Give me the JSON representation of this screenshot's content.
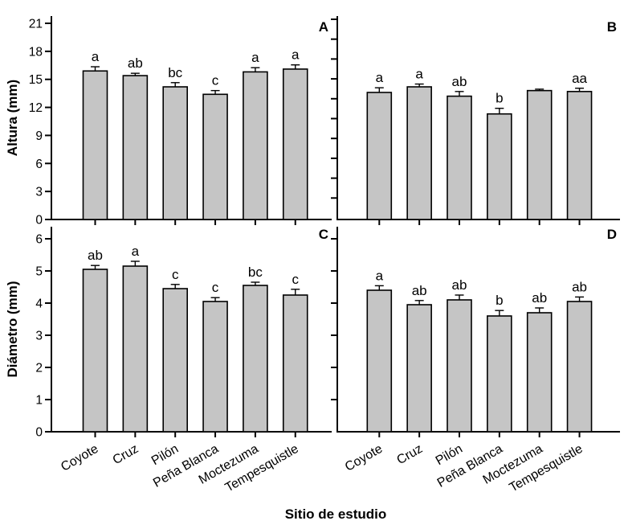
{
  "figure": {
    "background": "#ffffff",
    "xlabel": "Sitio de estudio"
  },
  "chart_data": {
    "type": "bar",
    "grid": false,
    "legend": null,
    "xlabel": "Sitio de estudio",
    "categories": [
      "Coyote",
      "Cruz",
      "Pilón",
      "Peña Blanca",
      "Moctezuma",
      "Tempesquistle"
    ],
    "colors": {
      "bar_fill": "#c5c5c5",
      "bar_stroke": "#000000",
      "axis": "#000000",
      "error_bar": "#000000",
      "text": "#000000"
    },
    "panels": [
      {
        "id": "A",
        "row": "top",
        "col": "left",
        "ylabel": "Altura (mm)",
        "ylim": [
          0,
          21
        ],
        "yticks": [
          0,
          3,
          6,
          9,
          12,
          15,
          18,
          21
        ],
        "yticks_labeled": true,
        "values": [
          15.9,
          15.4,
          14.2,
          13.4,
          15.8,
          16.1
        ],
        "errors": [
          0.45,
          0.25,
          0.45,
          0.4,
          0.45,
          0.45
        ],
        "sig_letters": [
          "a",
          "ab",
          "bc",
          "c",
          "a",
          "a"
        ]
      },
      {
        "id": "B",
        "row": "top",
        "col": "right",
        "ylabel": "",
        "ylim": [
          0,
          21
        ],
        "yticks": [],
        "yticks_labeled": false,
        "values": [
          13.6,
          14.2,
          13.2,
          11.3,
          13.8,
          13.7
        ],
        "errors": [
          0.5,
          0.3,
          0.5,
          0.6,
          0.15,
          0.35
        ],
        "sig_letters": [
          "a",
          "a",
          "ab",
          "b",
          "",
          "aa"
        ]
      },
      {
        "id": "C",
        "row": "bottom",
        "col": "left",
        "ylabel": "Diámetro (mm)",
        "ylim": [
          0,
          6
        ],
        "yticks": [
          0,
          1,
          2,
          3,
          4,
          5,
          6
        ],
        "yticks_labeled": true,
        "values": [
          5.05,
          5.15,
          4.45,
          4.05,
          4.55,
          4.25
        ],
        "errors": [
          0.12,
          0.15,
          0.13,
          0.12,
          0.1,
          0.18
        ],
        "sig_letters": [
          "ab",
          "a",
          "c",
          "c",
          "bc",
          "c"
        ]
      },
      {
        "id": "D",
        "row": "bottom",
        "col": "right",
        "ylabel": "",
        "ylim": [
          0,
          6
        ],
        "yticks": [],
        "yticks_labeled": false,
        "values": [
          4.4,
          3.95,
          4.1,
          3.6,
          3.7,
          4.05
        ],
        "errors": [
          0.14,
          0.13,
          0.15,
          0.17,
          0.15,
          0.14
        ],
        "sig_letters": [
          "a",
          "ab",
          "ab",
          "b",
          "ab",
          "ab"
        ]
      }
    ]
  }
}
